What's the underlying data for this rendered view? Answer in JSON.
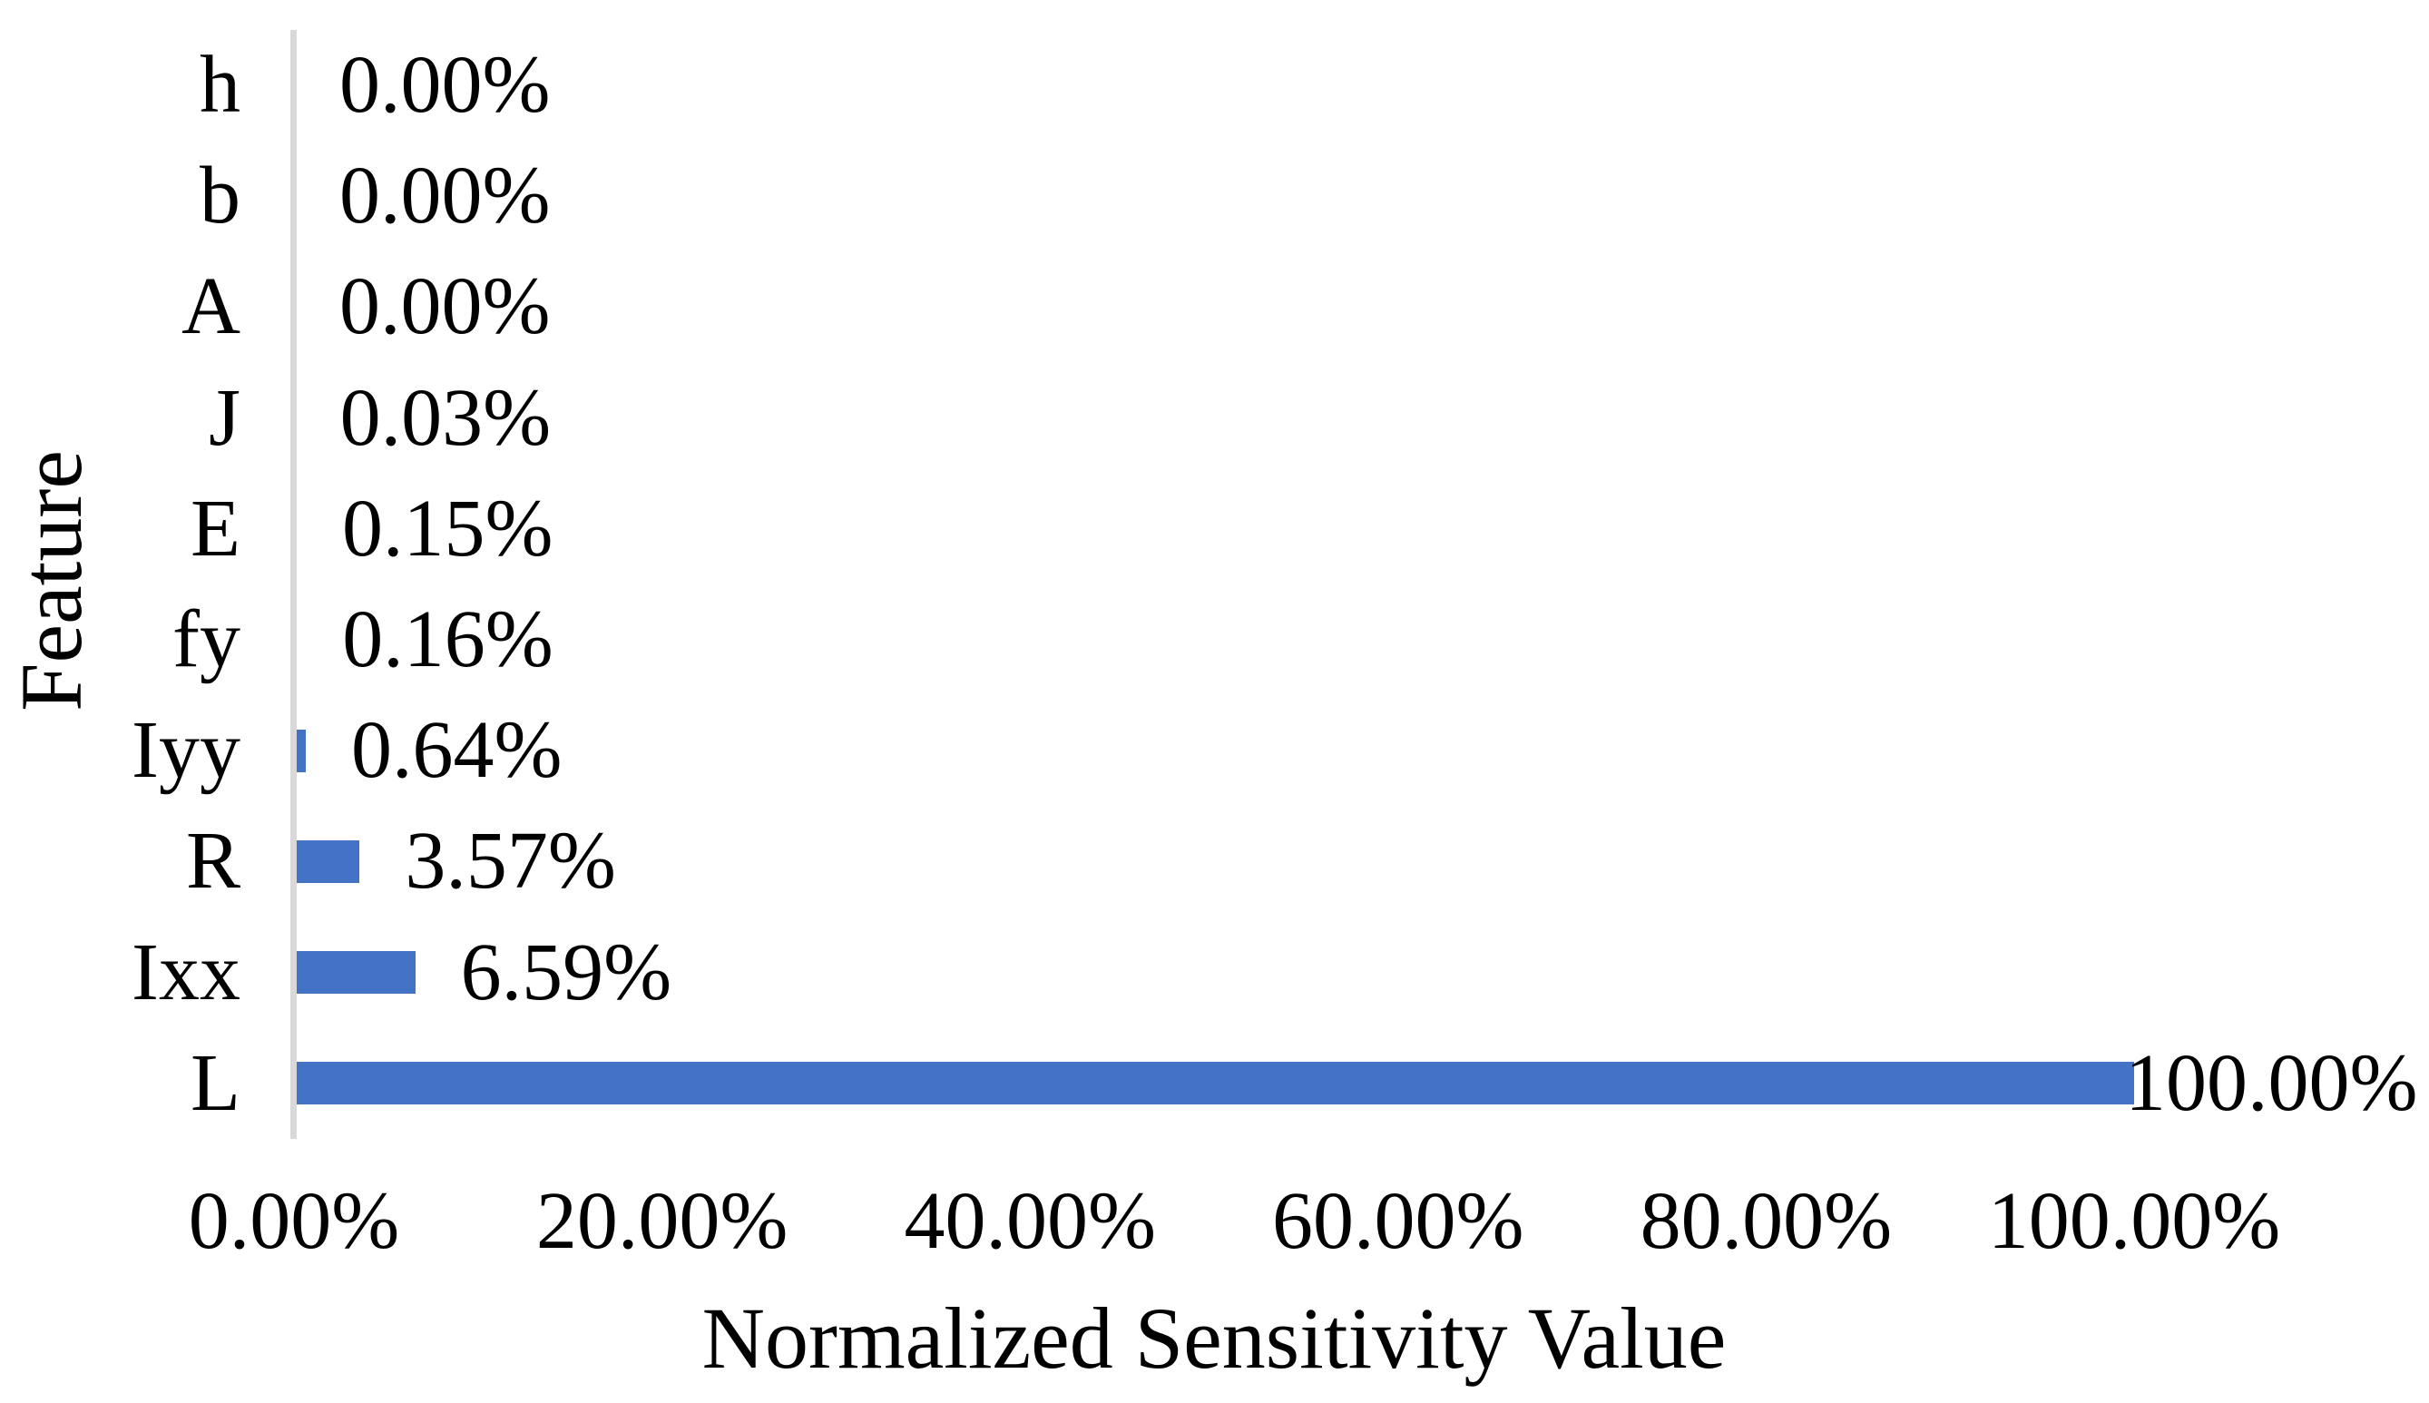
{
  "chart_data": {
    "type": "bar",
    "orientation": "horizontal",
    "title": "",
    "xlabel": "Normalized Sensitivity Value",
    "ylabel": "Feature",
    "categories": [
      "h",
      "b",
      "A",
      "J",
      "E",
      "fy",
      "Iyy",
      "R",
      "Ixx",
      "L"
    ],
    "values": [
      0.0,
      0.0,
      0.0,
      0.03,
      0.15,
      0.16,
      0.64,
      3.57,
      6.59,
      100.0
    ],
    "data_labels": [
      "0.00%",
      "0.00%",
      "0.00%",
      "0.03%",
      "0.15%",
      "0.16%",
      "0.64%",
      "3.57%",
      "6.59%",
      "100.00%"
    ],
    "x_ticks": [
      {
        "value": 0,
        "label": "0.00%"
      },
      {
        "value": 20,
        "label": "20.00%"
      },
      {
        "value": 40,
        "label": "40.00%"
      },
      {
        "value": 60,
        "label": "60.00%"
      },
      {
        "value": 80,
        "label": "80.00%"
      },
      {
        "value": 100,
        "label": "100.00%"
      }
    ],
    "xlim": [
      0,
      100
    ],
    "grid": false,
    "legend": "none",
    "data_label_position": "outside-end",
    "colors": {
      "bar": "#4472C4",
      "axis_line": "#D9D9D9",
      "text": "#000000",
      "background": "#FFFFFF"
    }
  }
}
